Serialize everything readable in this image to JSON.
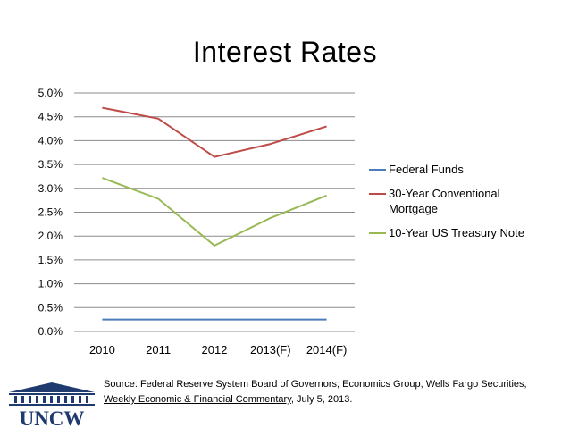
{
  "colors": {
    "federal_funds": "#4a7ebb",
    "mortgage": "#be4b48",
    "treasury": "#98b954",
    "gridline": "#8c8c8c",
    "logo_blue": "#1f3a6e"
  },
  "chart_data": {
    "type": "line",
    "title": "Interest Rates",
    "categories": [
      "2010",
      "2011",
      "2012",
      "2013(F)",
      "2014(F)"
    ],
    "ylim": [
      0,
      5
    ],
    "y_ticks": [
      "0.0%",
      "0.5%",
      "1.0%",
      "1.5%",
      "2.0%",
      "2.5%",
      "3.0%",
      "3.5%",
      "4.0%",
      "4.5%",
      "5.0%"
    ],
    "grid": true,
    "legend_position": "right",
    "series": [
      {
        "name": "Federal Funds",
        "color_key": "federal_funds",
        "values": [
          0.25,
          0.25,
          0.25,
          0.25,
          0.25
        ]
      },
      {
        "name": "30-Year Conventional Mortgage",
        "color_key": "mortgage",
        "values": [
          4.69,
          4.46,
          3.66,
          3.93,
          4.3
        ]
      },
      {
        "name": "10-Year US Treasury Note",
        "color_key": "treasury",
        "values": [
          3.22,
          2.78,
          1.8,
          2.38,
          2.85
        ]
      }
    ]
  },
  "source": {
    "line1": "Source: Federal Reserve System Board of Governors; Economics Group, Wells Fargo Securities,",
    "line2_underlined": "Weekly Economic & Financial Commentary",
    "line2_rest": ", July 5, 2013."
  },
  "logo": {
    "text": "UNCW",
    "icon": "university-columns-icon"
  }
}
